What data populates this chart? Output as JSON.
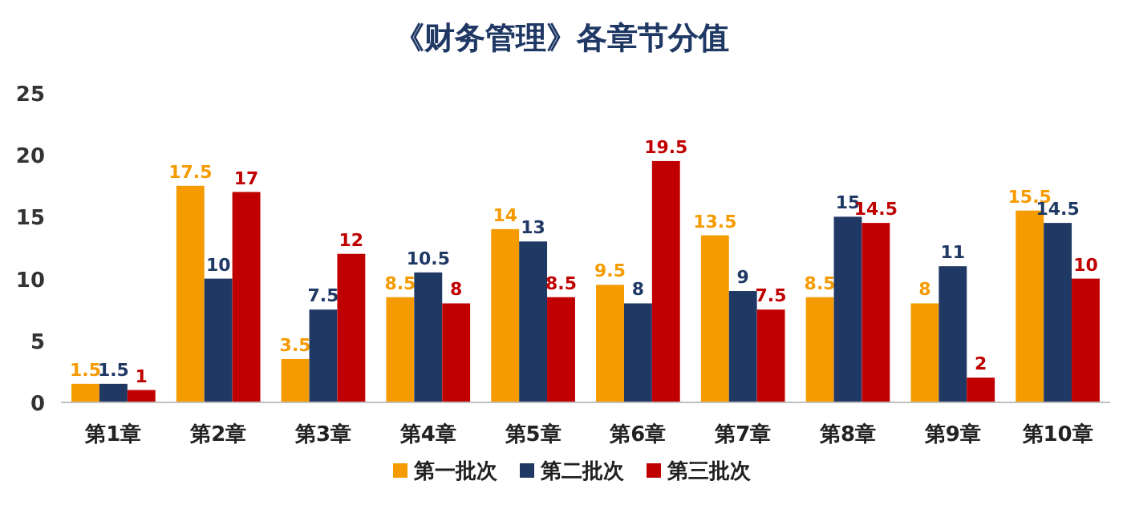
{
  "chart_data": {
    "type": "bar",
    "title": "《财务管理》各章节分值",
    "categories": [
      "第1章",
      "第2章",
      "第3章",
      "第4章",
      "第5章",
      "第6章",
      "第7章",
      "第8章",
      "第9章",
      "第10章"
    ],
    "series": [
      {
        "name": "第一批次",
        "color": "#f59b00",
        "values": [
          1.5,
          17.5,
          3.5,
          8.5,
          14,
          9.5,
          13.5,
          8.5,
          8,
          15.5
        ]
      },
      {
        "name": "第二批次",
        "color": "#1f3864",
        "values": [
          1.5,
          10,
          7.5,
          10.5,
          13,
          8,
          9,
          15,
          11,
          14.5
        ]
      },
      {
        "name": "第三批次",
        "color": "#c00000",
        "values": [
          1,
          17,
          12,
          8,
          8.5,
          19.5,
          7.5,
          14.5,
          2,
          10
        ]
      }
    ],
    "ylim": [
      0,
      25
    ],
    "yticks": [
      0,
      5,
      10,
      15,
      20,
      25
    ],
    "data_labels": true,
    "legend": "bottom",
    "grid": false
  }
}
